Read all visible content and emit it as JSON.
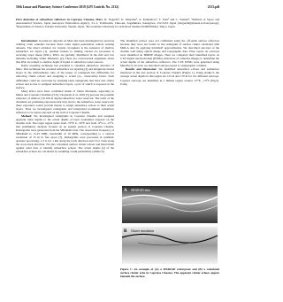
{
  "header": {
    "left": "50th Lunar and Planetary Science Conference 2019 (LPI Contrib. No. 2132)",
    "right": "2333.pdf"
  },
  "title": "First detection of subsurface reflectors in Coprates Chasma, Mars.",
  "authors": "R. Noguchi¹, K. Ishiyama², A. Kumamoto³, T. Usui¹ and C. Tomura¹, ¹Institute of Space and Astronautical Science, Japan Aerospace Exploration Agency, 3-1-1, Yoshinodai, Chuo-ku, Sagamihara, Kanagawa, 252-5210 Japan (rnoguchi@planeta.sci.isas.jaxa.jp), ²Department of Science, Tohoku University, Sendai, Japan, ³the Graduate University for Advanced Studies (SOKENDAI), Tokyo, Japan.",
  "left_column": [
    {
      "heading": "Introduction:",
      "text": "Ground-ice deposits on Mars has been investigated by previous orbiting radar sounders because these radar signal penetration remote sensing datasets. The direct evidence for current cryosphere is the existence of shallow subsurface ice layers [1]. Another feature to sinking current ice processes is recurring slope lineae (RSL). RSLs are globally distributed in the mid and low latitudes including Valles Marineris [2]. There are controversial arguments about that RSL are related to shallow depth of liquid or subsurface water sources."
    },
    {
      "heading": "",
      "text": "Radar sounding technique has potential to visualize subsurface structure of Mars. This technique has revealed subsurface ice layering [3] and ubiquitous buried layers in the mid-latitudes. One of the issues of radargram has difficulties for removing clutter echoes and assigning to actual (i.e., observable) facies. Such difficulties could be overcome by studying ideal radargrams that have less clutter echoes and access to assigned subsurface layers, a part of which is exposed on the surface."
    },
    {
      "heading": "",
      "text": "Many RSLs have been confirmed inside of Valles Marineris, especially in Melas and Coprates Chasmata [5,6]. Chojnacki et al. 2016 [5] propose the possible existence of shallow (10-100 m depth) subsurface water reservoir. The walls of the chasmata are promising exposures that may lead to the subsurface water reservoirs; these exposures would provide means to assign subsurface echoes to their actual layers. Thus we investigated radargrams and interpreted prominent subsurface reflectors to be layers exposed on the wall of Coprates Chasma."
    },
    {
      "heading": "Method:",
      "text": "We investigated radargrams in Coprates Chasma and assigned apparent radar depths to the actual depths of layer boundaries exposed on the chasma wall. The target region spans from -70°E to -56°E and from -9°S to -15°S. Our preliminary analysis focused on an eastern portion of Coprates Chasma. Radargrams were generated from the SHARAD data. The observation frequency of SHARAD is 15-25 MHz, bandwidth of 10 MHz, corresponding to a vertical resolution of 15 m in free space [7]. Radargrams were processed in synthetic aperture processing, 1-3 G for 1 km along the track direction and 3 for 3 km along the cross-track direction. We also calculated surface clutter echoes and listed them against radar data to identify subsurface echoes. The actual depths (z) of the subsurface echoes are calculated by assuming a bulk permittivity (εbulk=3)."
    }
  ],
  "right_column": [
    {
      "heading": "",
      "text": "The identified echoes were not confirmed using the off-nadir surface reflectors because they were not found on the radargram of surface clutter calculated with MOLA data by applying Kirchhoff approximation. We described outcrops of the chasma wall using optical image and topographic data. First, layers on outcrops were identified on HiRISE images. Then we compared their identified layers on CTX digital terrain models (DTMs) with those of orthodox images to determine the actual depths of the subsurface reflectors. The CTX DTMs were generated using MarsIS [7]. In total, we described and processed 11 stratigraphic columns."
    },
    {
      "heading": "Results and Discussion:",
      "text": "We identified subsurface echoes and subsurface interfaces in the east portion of Coprates Chasma (Figure 1). Using εbulk=3, the average actual depths in this region are 125 m and 170 m for two different outcrops. Layered outcrops are identified in a limited region around -57°E, -13°S (Fig.2). Using"
    }
  ],
  "figure": {
    "panel_a": "A",
    "panel_a_label": "SHARAD data",
    "panel_b": "B",
    "panel_b_label": "Clutter simulation",
    "caption": "Figure 1: An example of (A) a SHARAD radargram and (B) a calculated surface clutter echo in Coprates Chasma. The apparent clutter echoes appear beneath the surface."
  }
}
